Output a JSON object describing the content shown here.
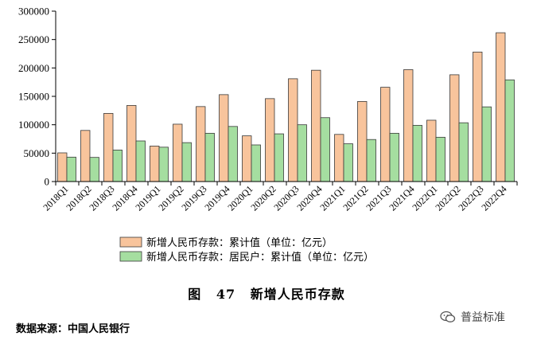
{
  "chart_data": {
    "type": "bar",
    "categories": [
      "2018Q1",
      "2018Q2",
      "2018Q3",
      "2018Q4",
      "2019Q1",
      "2019Q2",
      "2019Q3",
      "2019Q4",
      "2020Q1",
      "2020Q2",
      "2020Q3",
      "2020Q4",
      "2021Q1",
      "2021Q2",
      "2021Q3",
      "2021Q4",
      "2022Q1",
      "2022Q2",
      "2022Q3",
      "2022Q4"
    ],
    "series": [
      {
        "name": "新增人民币存款：累计值（单位：亿元）",
        "color": "#f8c49c",
        "values": [
          50500,
          90000,
          120000,
          134000,
          62500,
          101000,
          132000,
          153000,
          80500,
          146000,
          181000,
          196000,
          83000,
          141000,
          166000,
          197000,
          108000,
          188000,
          228000,
          262000
        ]
      },
      {
        "name": "新增人民币存款：居民户：累计值（单位：亿元）",
        "color": "#a5dea0",
        "values": [
          43000,
          42500,
          55500,
          71500,
          60500,
          68500,
          85000,
          97000,
          64500,
          84000,
          100000,
          112500,
          66500,
          74000,
          85000,
          99000,
          78000,
          103500,
          131500,
          179000
        ]
      }
    ],
    "y_ticks": [
      "0",
      "50000",
      "100000",
      "150000",
      "200000",
      "250000",
      "300000"
    ],
    "ylim": [
      0,
      300000
    ],
    "grid": false,
    "legend_position": "bottom",
    "title": "图 47 新增人民币存款",
    "xlabel": "",
    "ylabel": ""
  },
  "figure": {
    "label": "图",
    "number": "47",
    "text": "新增人民币存款"
  },
  "source_text": "数据来源：中国人民银行",
  "watermark_text": "普益标准"
}
